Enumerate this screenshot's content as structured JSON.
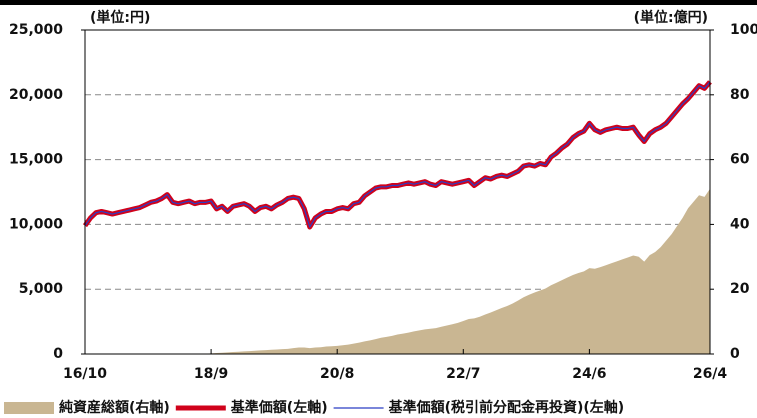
{
  "chart_data": {
    "type": "line",
    "y_unit_label": "(単位:円)",
    "y2_unit_label": "(単位:億円)",
    "categories": [
      "16/10",
      "16/11",
      "16/12",
      "17/1",
      "17/2",
      "17/3",
      "17/4",
      "17/5",
      "17/6",
      "17/7",
      "17/8",
      "17/9",
      "17/10",
      "17/11",
      "17/12",
      "18/1",
      "18/2",
      "18/3",
      "18/4",
      "18/5",
      "18/6",
      "18/7",
      "18/8",
      "18/9",
      "18/10",
      "18/11",
      "18/12",
      "19/1",
      "19/2",
      "19/3",
      "19/4",
      "19/5",
      "19/6",
      "19/7",
      "19/8",
      "19/9",
      "19/10",
      "19/11",
      "19/12",
      "20/1",
      "20/2",
      "20/3",
      "20/4",
      "20/5",
      "20/6",
      "20/7",
      "20/8",
      "20/9",
      "20/10",
      "20/11",
      "20/12",
      "21/1",
      "21/2",
      "21/3",
      "21/4",
      "21/5",
      "21/6",
      "21/7",
      "21/8",
      "21/9",
      "21/10",
      "21/11",
      "21/12",
      "22/1",
      "22/2",
      "22/3",
      "22/4",
      "22/5",
      "22/6",
      "22/7",
      "22/8",
      "22/9",
      "22/10",
      "22/11",
      "22/12",
      "23/1",
      "23/2",
      "23/3",
      "23/4",
      "23/5",
      "23/6",
      "23/7",
      "23/8",
      "23/9",
      "23/10",
      "23/11",
      "23/12",
      "24/1",
      "24/2",
      "24/3",
      "24/4",
      "24/5",
      "24/6",
      "24/7",
      "24/8",
      "24/9",
      "24/10",
      "24/11",
      "24/12",
      "25/1",
      "25/2",
      "25/3",
      "25/4",
      "25/5",
      "25/6",
      "25/7",
      "25/8",
      "25/9",
      "25/10",
      "25/11",
      "25/12",
      "26/1",
      "26/2",
      "26/3",
      "26/4"
    ],
    "xticks": [
      "16/10",
      "18/9",
      "20/8",
      "22/7",
      "24/6",
      "26/4"
    ],
    "ylim": [
      0,
      25000
    ],
    "yticks": [
      {
        "value": 0,
        "label": "0"
      },
      {
        "value": 5000,
        "label": "5,000"
      },
      {
        "value": 10000,
        "label": "10,000"
      },
      {
        "value": 15000,
        "label": "15,000"
      },
      {
        "value": 20000,
        "label": "20,000"
      },
      {
        "value": 25000,
        "label": "25,000"
      }
    ],
    "y2lim": [
      0,
      100
    ],
    "y2ticks": [
      0,
      20,
      40,
      60,
      80,
      100
    ],
    "grid": true,
    "series": [
      {
        "name": "純資産総額(右軸)",
        "type": "area",
        "axis": "y2",
        "color": "#c9b692",
        "values": [
          0,
          0,
          0,
          0,
          0,
          0,
          0,
          0,
          0,
          0,
          0,
          0,
          0,
          0,
          0,
          0,
          0,
          0,
          0,
          0,
          0,
          0,
          0.1,
          0.2,
          0.3,
          0.4,
          0.5,
          0.6,
          0.7,
          0.8,
          0.9,
          1.0,
          1.1,
          1.2,
          1.3,
          1.4,
          1.5,
          1.6,
          1.8,
          2.0,
          2.0,
          1.8,
          2.0,
          2.1,
          2.3,
          2.4,
          2.5,
          2.7,
          2.9,
          3.2,
          3.5,
          3.9,
          4.2,
          4.6,
          5.0,
          5.3,
          5.6,
          6.0,
          6.3,
          6.6,
          7.0,
          7.3,
          7.6,
          7.8,
          8.0,
          8.4,
          8.8,
          9.2,
          9.6,
          10.2,
          10.8,
          11.0,
          11.5,
          12.2,
          12.8,
          13.5,
          14.2,
          14.8,
          15.6,
          16.5,
          17.5,
          18.3,
          19.0,
          19.6,
          20.2,
          21.2,
          22.0,
          22.8,
          23.6,
          24.4,
          25.0,
          25.5,
          26.5,
          26.3,
          26.8,
          27.4,
          28.0,
          28.6,
          29.2,
          29.8,
          30.4,
          30.0,
          28.5,
          30.5,
          31.5,
          33.0,
          35.0,
          37.0,
          39.5,
          42.0,
          45.0,
          47.0,
          49.0,
          48.5,
          51.0
        ]
      },
      {
        "name": "基準価額(左軸)",
        "type": "line",
        "color": "#d0021b",
        "width": 5,
        "values": [
          9900,
          10500,
          10900,
          11000,
          10900,
          10800,
          10900,
          11000,
          11100,
          11200,
          11300,
          11500,
          11700,
          11800,
          12000,
          12300,
          11700,
          11600,
          11700,
          11800,
          11600,
          11700,
          11700,
          11800,
          11200,
          11400,
          11000,
          11400,
          11500,
          11600,
          11400,
          11000,
          11300,
          11400,
          11200,
          11500,
          11700,
          12000,
          12100,
          12000,
          11200,
          9800,
          10500,
          10800,
          11000,
          11000,
          11200,
          11300,
          11200,
          11600,
          11700,
          12200,
          12500,
          12800,
          12900,
          12900,
          13000,
          13000,
          13100,
          13200,
          13100,
          13200,
          13300,
          13100,
          13000,
          13300,
          13200,
          13100,
          13200,
          13300,
          13400,
          13000,
          13300,
          13600,
          13500,
          13700,
          13800,
          13700,
          13900,
          14100,
          14500,
          14600,
          14500,
          14700,
          14600,
          15200,
          15500,
          15900,
          16200,
          16700,
          17000,
          17200,
          17800,
          17300,
          17100,
          17300,
          17400,
          17500,
          17400,
          17400,
          17500,
          16900,
          16400,
          17000,
          17300,
          17500,
          17800,
          18300,
          18800,
          19300,
          19700,
          20200,
          20700,
          20500,
          21000
        ]
      },
      {
        "name": "基準価額(税引前分配金再投資)(左軸)",
        "type": "line",
        "color": "#2b3fc4",
        "width": 1.2,
        "values": [
          9900,
          10500,
          10900,
          11000,
          10900,
          10800,
          10900,
          11000,
          11100,
          11200,
          11300,
          11500,
          11700,
          11800,
          12000,
          12300,
          11700,
          11600,
          11700,
          11800,
          11600,
          11700,
          11700,
          11800,
          11200,
          11400,
          11000,
          11400,
          11500,
          11600,
          11400,
          11000,
          11300,
          11400,
          11200,
          11500,
          11700,
          12000,
          12100,
          12000,
          11200,
          9800,
          10500,
          10800,
          11000,
          11000,
          11200,
          11300,
          11200,
          11600,
          11700,
          12200,
          12500,
          12800,
          12900,
          12900,
          13000,
          13000,
          13100,
          13200,
          13100,
          13200,
          13300,
          13100,
          13000,
          13300,
          13200,
          13100,
          13200,
          13300,
          13400,
          13000,
          13300,
          13600,
          13500,
          13700,
          13800,
          13700,
          13900,
          14100,
          14500,
          14600,
          14500,
          14700,
          14600,
          15200,
          15500,
          15900,
          16200,
          16700,
          17000,
          17200,
          17800,
          17300,
          17100,
          17300,
          17400,
          17500,
          17400,
          17400,
          17500,
          16900,
          16400,
          17000,
          17300,
          17500,
          17800,
          18300,
          18800,
          19300,
          19700,
          20200,
          20700,
          20500,
          21000
        ]
      }
    ]
  }
}
